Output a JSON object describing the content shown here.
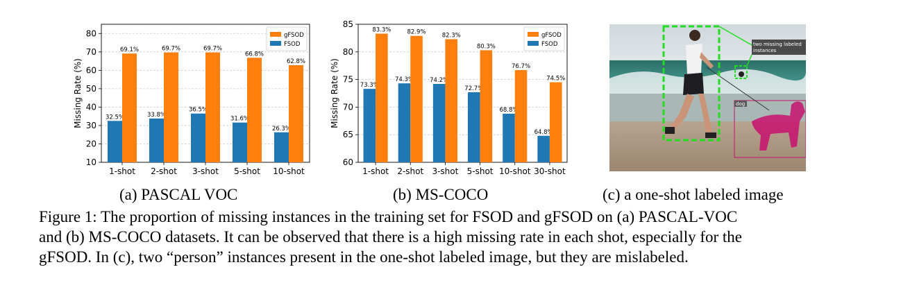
{
  "figure": {
    "subcaptions": {
      "a": "(a) PASCAL VOC",
      "b": "(b) MS-COCO",
      "c": "(c) a one-shot labeled image"
    },
    "caption_lines": [
      "Figure 1: The proportion of missing instances in the training set for FSOD and gFSOD on (a) PASCAL-VOC",
      "and (b) MS-COCO datasets. It can be observed that there is a high missing rate in each shot, especially for the",
      "gFSOD. In (c), two “person” instances present in the one-shot labeled image, but they are mislabeled."
    ],
    "photo": {
      "annotation_text_1": "two missing labeled",
      "annotation_text_2": "instances",
      "dog_label": "dog",
      "colors": {
        "missing_box": "#22dd22",
        "dog_mask": "#c8106e"
      }
    }
  },
  "chart_data": [
    {
      "type": "bar",
      "ylabel": "Missing Rate (%)",
      "xlabel": "",
      "ylim": [
        10,
        85
      ],
      "yticks": [
        10,
        20,
        30,
        40,
        50,
        60,
        70,
        80
      ],
      "categories": [
        "1-shot",
        "2-shot",
        "3-shot",
        "5-shot",
        "10-shot"
      ],
      "legend_position": "top-right",
      "grid": true,
      "series": [
        {
          "name": "FSOD",
          "color": "#1f77b4",
          "values": [
            32.5,
            33.8,
            36.5,
            31.6,
            26.3
          ],
          "labels": [
            "32.5%",
            "33.8%",
            "36.5%",
            "31.6%",
            "26.3%"
          ]
        },
        {
          "name": "gFSOD",
          "color": "#ff7f0e",
          "values": [
            69.1,
            69.7,
            69.7,
            66.8,
            62.8
          ],
          "labels": [
            "69.1%",
            "69.7%",
            "69.7%",
            "66.8%",
            "62.8%"
          ]
        }
      ]
    },
    {
      "type": "bar",
      "ylabel": "Missing Rate (%)",
      "xlabel": "",
      "ylim": [
        60,
        85
      ],
      "yticks": [
        60,
        65,
        70,
        75,
        80,
        85
      ],
      "categories": [
        "1-shot",
        "2-shot",
        "3-shot",
        "5-shot",
        "10-shot",
        "30-shot"
      ],
      "legend_position": "top-right",
      "grid": true,
      "series": [
        {
          "name": "FSOD",
          "color": "#1f77b4",
          "values": [
            73.3,
            74.3,
            74.2,
            72.7,
            68.8,
            64.8
          ],
          "labels": [
            "73.3%",
            "74.3%",
            "74.2%",
            "72.7%",
            "68.8%",
            "64.8%"
          ]
        },
        {
          "name": "gFSOD",
          "color": "#ff7f0e",
          "values": [
            83.3,
            82.9,
            82.3,
            80.3,
            76.7,
            74.5
          ],
          "labels": [
            "83.3%",
            "82.9%",
            "82.3%",
            "80.3%",
            "76.7%",
            "74.5%"
          ]
        }
      ]
    }
  ]
}
